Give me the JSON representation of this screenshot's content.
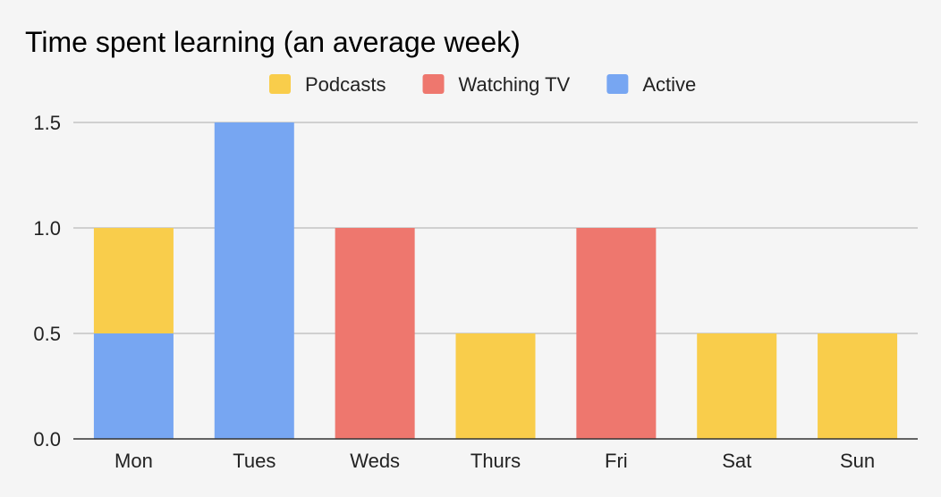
{
  "chart_data": {
    "type": "bar",
    "stacked": true,
    "title": "Time spent learning (an average week)",
    "categories": [
      "Mon",
      "Tues",
      "Weds",
      "Thurs",
      "Fri",
      "Sat",
      "Sun"
    ],
    "series": [
      {
        "name": "Active",
        "color": "#77a6f2",
        "values": [
          0.5,
          1.5,
          0,
          0,
          0,
          0,
          0
        ]
      },
      {
        "name": "Watching TV",
        "color": "#ee776e",
        "values": [
          0,
          0,
          1.0,
          0,
          1.0,
          0,
          0
        ]
      },
      {
        "name": "Podcasts",
        "color": "#f9cd4b",
        "values": [
          0.5,
          0,
          0,
          0.5,
          0,
          0.5,
          0.5
        ]
      }
    ],
    "legend_order": [
      "Podcasts",
      "Watching TV",
      "Active"
    ],
    "legend_position": "top",
    "ylim": [
      0,
      1.5
    ],
    "yticks": [
      "0.0",
      "0.5",
      "1.0",
      "1.5"
    ],
    "ytick_values": [
      0,
      0.5,
      1.0,
      1.5
    ],
    "grid": true,
    "xlabel": "",
    "ylabel": ""
  }
}
